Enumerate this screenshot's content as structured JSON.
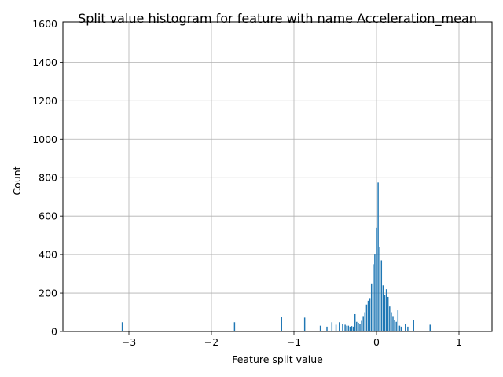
{
  "chart_data": {
    "type": "bar",
    "title": "Split value histogram for feature with name Acceleration_mean",
    "xlabel": "Feature split value",
    "ylabel": "Count",
    "xlim": [
      -3.8,
      1.4
    ],
    "ylim": [
      0,
      1610
    ],
    "grid": true,
    "bar_color": "#1f77b4",
    "bar_width": 0.014,
    "x_ticks": [
      {
        "value": -3,
        "label": "−3"
      },
      {
        "value": -2,
        "label": "−2"
      },
      {
        "value": -1,
        "label": "−1"
      },
      {
        "value": 0,
        "label": "0"
      },
      {
        "value": 1,
        "label": "1"
      }
    ],
    "y_ticks": [
      {
        "value": 0,
        "label": "0"
      },
      {
        "value": 200,
        "label": "200"
      },
      {
        "value": 400,
        "label": "400"
      },
      {
        "value": 600,
        "label": "600"
      },
      {
        "value": 800,
        "label": "800"
      },
      {
        "value": 1000,
        "label": "1000"
      },
      {
        "value": 1200,
        "label": "1200"
      },
      {
        "value": 1400,
        "label": "1400"
      },
      {
        "value": 1600,
        "label": "1600"
      }
    ],
    "bars": [
      {
        "x": -3.08,
        "y": 48
      },
      {
        "x": -1.72,
        "y": 48
      },
      {
        "x": -1.15,
        "y": 75
      },
      {
        "x": -0.87,
        "y": 72
      },
      {
        "x": -0.68,
        "y": 30
      },
      {
        "x": -0.6,
        "y": 25
      },
      {
        "x": -0.54,
        "y": 48
      },
      {
        "x": -0.49,
        "y": 35
      },
      {
        "x": -0.45,
        "y": 48
      },
      {
        "x": -0.41,
        "y": 40
      },
      {
        "x": -0.38,
        "y": 35
      },
      {
        "x": -0.36,
        "y": 30
      },
      {
        "x": -0.34,
        "y": 30
      },
      {
        "x": -0.32,
        "y": 25
      },
      {
        "x": -0.3,
        "y": 28
      },
      {
        "x": -0.28,
        "y": 25
      },
      {
        "x": -0.26,
        "y": 90
      },
      {
        "x": -0.24,
        "y": 50
      },
      {
        "x": -0.22,
        "y": 45
      },
      {
        "x": -0.2,
        "y": 40
      },
      {
        "x": -0.18,
        "y": 55
      },
      {
        "x": -0.16,
        "y": 80
      },
      {
        "x": -0.14,
        "y": 100
      },
      {
        "x": -0.12,
        "y": 140
      },
      {
        "x": -0.1,
        "y": 160
      },
      {
        "x": -0.08,
        "y": 170
      },
      {
        "x": -0.06,
        "y": 250
      },
      {
        "x": -0.04,
        "y": 350
      },
      {
        "x": -0.02,
        "y": 400
      },
      {
        "x": 0.0,
        "y": 540
      },
      {
        "x": 0.02,
        "y": 775
      },
      {
        "x": 0.04,
        "y": 440
      },
      {
        "x": 0.06,
        "y": 370
      },
      {
        "x": 0.08,
        "y": 240
      },
      {
        "x": 0.1,
        "y": 190
      },
      {
        "x": 0.12,
        "y": 220
      },
      {
        "x": 0.14,
        "y": 180
      },
      {
        "x": 0.16,
        "y": 130
      },
      {
        "x": 0.18,
        "y": 100
      },
      {
        "x": 0.2,
        "y": 80
      },
      {
        "x": 0.22,
        "y": 60
      },
      {
        "x": 0.24,
        "y": 50
      },
      {
        "x": 0.26,
        "y": 110
      },
      {
        "x": 0.28,
        "y": 30
      },
      {
        "x": 0.3,
        "y": 25
      },
      {
        "x": 0.35,
        "y": 40
      },
      {
        "x": 0.38,
        "y": 25
      },
      {
        "x": 0.45,
        "y": 60
      },
      {
        "x": 0.65,
        "y": 35
      }
    ]
  }
}
